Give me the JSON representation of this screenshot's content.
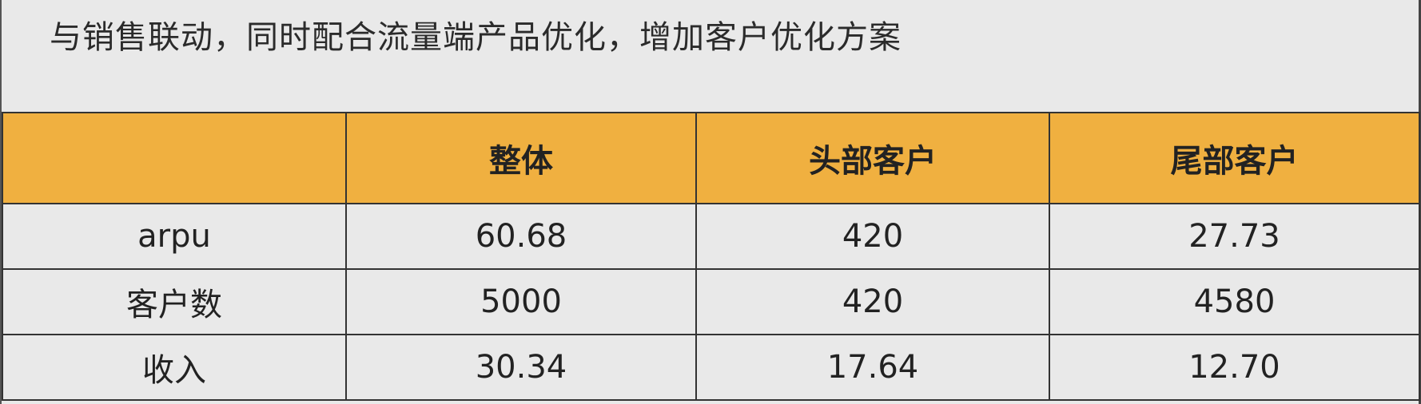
{
  "title": "与销售联动，同时配合流量端产品优化，增加客户优化方案",
  "table": {
    "columns": [
      "",
      "整体",
      "头部客户",
      "尾部客户"
    ],
    "rows": [
      {
        "label": "arpu",
        "cells": [
          "60.68",
          "420",
          "27.73"
        ]
      },
      {
        "label": "客户数",
        "cells": [
          "5000",
          "420",
          "4580"
        ]
      },
      {
        "label": "收入",
        "cells": [
          "30.34",
          "17.64",
          "12.70"
        ]
      }
    ]
  },
  "colors": {
    "header_bg": "#f0b040",
    "body_bg": "#e9e9e9",
    "border": "#333333"
  }
}
